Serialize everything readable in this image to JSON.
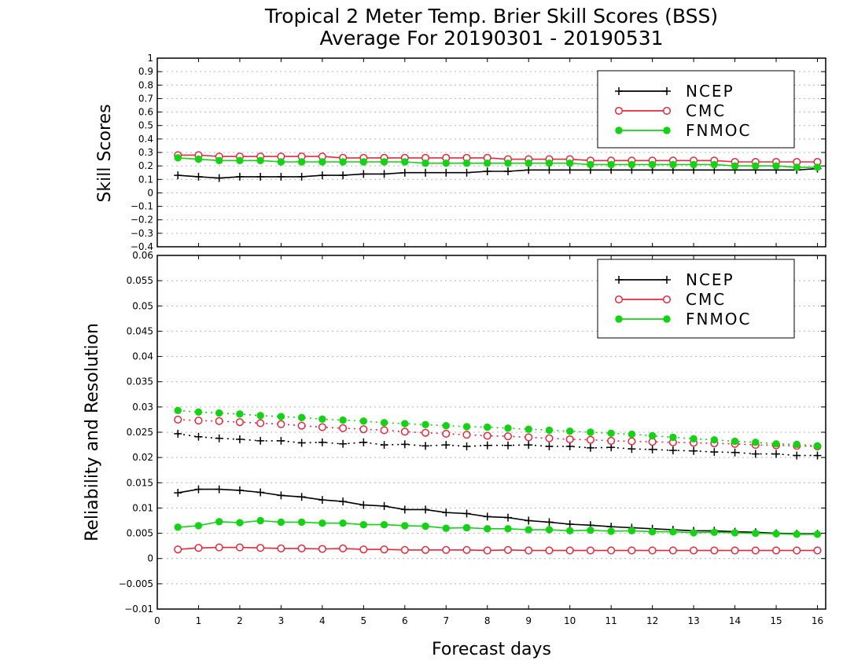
{
  "title_line1": "Tropical 2 Meter Temp. Brier Skill Scores (BSS)",
  "title_line2": "Average For 20190301 - 20190531",
  "xlabel": "Forecast days",
  "colors": {
    "NCEP": "#000000",
    "CMC": "#e8283c",
    "FNMOC": "#14d214"
  },
  "chart_data": [
    {
      "type": "line",
      "ylabel": "Skill Scores",
      "xlim": [
        0,
        16.2
      ],
      "ylim": [
        -0.4,
        1
      ],
      "yticks": [
        "−0.4",
        "−0.3",
        "−0.2",
        "−0.1",
        "0",
        "0.1",
        "0.2",
        "0.3",
        "0.4",
        "0.5",
        "0.6",
        "0.7",
        "0.8",
        "0.9",
        "1"
      ],
      "xticks": [
        "0",
        "1",
        "2",
        "3",
        "4",
        "5",
        "6",
        "7",
        "8",
        "9",
        "10",
        "11",
        "12",
        "13",
        "14",
        "15",
        "16"
      ],
      "grid": true,
      "legend_position": "top-right",
      "legend": [
        "NCEP",
        "CMC",
        "FNMOC"
      ],
      "x": [
        0.5,
        1,
        1.5,
        2,
        2.5,
        3,
        3.5,
        4,
        4.5,
        5,
        5.5,
        6,
        6.5,
        7,
        7.5,
        8,
        8.5,
        9,
        9.5,
        10,
        10.5,
        11,
        11.5,
        12,
        12.5,
        13,
        13.5,
        14,
        14.5,
        15,
        15.5,
        16
      ],
      "series": [
        {
          "name": "NCEP",
          "style": "solid",
          "marker": "plus",
          "values": [
            0.13,
            0.12,
            0.11,
            0.12,
            0.12,
            0.12,
            0.12,
            0.13,
            0.13,
            0.14,
            0.14,
            0.15,
            0.15,
            0.15,
            0.15,
            0.16,
            0.16,
            0.17,
            0.17,
            0.17,
            0.17,
            0.17,
            0.17,
            0.17,
            0.17,
            0.17,
            0.17,
            0.17,
            0.17,
            0.17,
            0.17,
            0.18
          ]
        },
        {
          "name": "CMC",
          "style": "solid",
          "marker": "circle",
          "values": [
            0.28,
            0.28,
            0.27,
            0.27,
            0.27,
            0.27,
            0.27,
            0.27,
            0.26,
            0.26,
            0.26,
            0.26,
            0.26,
            0.26,
            0.26,
            0.26,
            0.25,
            0.25,
            0.25,
            0.25,
            0.24,
            0.24,
            0.24,
            0.24,
            0.24,
            0.24,
            0.24,
            0.23,
            0.23,
            0.23,
            0.23,
            0.23
          ]
        },
        {
          "name": "FNMOC",
          "style": "solid",
          "marker": "dot",
          "values": [
            0.26,
            0.25,
            0.24,
            0.24,
            0.24,
            0.23,
            0.23,
            0.23,
            0.23,
            0.23,
            0.23,
            0.23,
            0.22,
            0.22,
            0.22,
            0.22,
            0.22,
            0.22,
            0.22,
            0.22,
            0.21,
            0.21,
            0.21,
            0.21,
            0.21,
            0.21,
            0.21,
            0.2,
            0.2,
            0.2,
            0.19,
            0.19
          ]
        }
      ]
    },
    {
      "type": "line",
      "ylabel": "Reliability and Resolution",
      "xlim": [
        0,
        16.2
      ],
      "ylim": [
        -0.01,
        0.06
      ],
      "yticks": [
        "−0.01",
        "−0.005",
        "0",
        "0.005",
        "0.01",
        "0.015",
        "0.02",
        "0.025",
        "0.03",
        "0.035",
        "0.04",
        "0.045",
        "0.05",
        "0.055",
        "0.06"
      ],
      "xticks": [
        "0",
        "1",
        "2",
        "3",
        "4",
        "5",
        "6",
        "7",
        "8",
        "9",
        "10",
        "11",
        "12",
        "13",
        "14",
        "15",
        "16"
      ],
      "grid": true,
      "legend_position": "top-right",
      "legend": [
        "NCEP",
        "CMC",
        "FNMOC"
      ],
      "x": [
        0.5,
        1,
        1.5,
        2,
        2.5,
        3,
        3.5,
        4,
        4.5,
        5,
        5.5,
        6,
        6.5,
        7,
        7.5,
        8,
        8.5,
        9,
        9.5,
        10,
        10.5,
        11,
        11.5,
        12,
        12.5,
        13,
        13.5,
        14,
        14.5,
        15,
        15.5,
        16
      ],
      "series": [
        {
          "name": "NCEP",
          "style": "solid",
          "marker": "plus",
          "values": [
            0.013,
            0.0137,
            0.0137,
            0.0135,
            0.0131,
            0.0125,
            0.0122,
            0.0116,
            0.0113,
            0.0106,
            0.0104,
            0.0097,
            0.0097,
            0.0091,
            0.0089,
            0.0083,
            0.0081,
            0.0075,
            0.0072,
            0.0068,
            0.0066,
            0.0063,
            0.0061,
            0.0059,
            0.0057,
            0.0055,
            0.0055,
            0.0053,
            0.0052,
            0.005,
            0.0049,
            0.0049
          ]
        },
        {
          "name": "NCEP",
          "style": "dotted",
          "marker": "plus",
          "values": [
            0.0247,
            0.0241,
            0.0238,
            0.0236,
            0.0233,
            0.0233,
            0.0229,
            0.023,
            0.0227,
            0.023,
            0.0225,
            0.0226,
            0.0223,
            0.0225,
            0.0222,
            0.0224,
            0.0224,
            0.0225,
            0.0222,
            0.0222,
            0.0219,
            0.022,
            0.0217,
            0.0216,
            0.0214,
            0.0213,
            0.0211,
            0.021,
            0.0207,
            0.0207,
            0.0204,
            0.0204
          ]
        },
        {
          "name": "CMC",
          "style": "solid",
          "marker": "circle",
          "values": [
            0.0018,
            0.0021,
            0.0022,
            0.0022,
            0.0021,
            0.002,
            0.002,
            0.0019,
            0.002,
            0.0018,
            0.0018,
            0.0017,
            0.0017,
            0.0017,
            0.0017,
            0.0016,
            0.0017,
            0.0016,
            0.0016,
            0.0016,
            0.0016,
            0.0016,
            0.0016,
            0.0016,
            0.0016,
            0.0016,
            0.0016,
            0.0016,
            0.0016,
            0.0016,
            0.0016,
            0.0016
          ]
        },
        {
          "name": "CMC",
          "style": "dotted",
          "marker": "circle",
          "values": [
            0.0275,
            0.0273,
            0.0272,
            0.027,
            0.0268,
            0.0266,
            0.0263,
            0.026,
            0.0258,
            0.0256,
            0.0254,
            0.0251,
            0.0249,
            0.0247,
            0.0245,
            0.0243,
            0.0242,
            0.024,
            0.0238,
            0.0236,
            0.0235,
            0.0233,
            0.0232,
            0.0231,
            0.023,
            0.0229,
            0.0228,
            0.0227,
            0.0225,
            0.0224,
            0.0223,
            0.0222
          ]
        },
        {
          "name": "FNMOC",
          "style": "solid",
          "marker": "dot",
          "values": [
            0.0062,
            0.0065,
            0.0073,
            0.0071,
            0.0075,
            0.0072,
            0.0072,
            0.007,
            0.007,
            0.0067,
            0.0067,
            0.0065,
            0.0064,
            0.006,
            0.0061,
            0.0059,
            0.0059,
            0.0057,
            0.0057,
            0.0055,
            0.0056,
            0.0054,
            0.0055,
            0.0053,
            0.0053,
            0.0051,
            0.0052,
            0.0051,
            0.005,
            0.0049,
            0.0048,
            0.0048
          ]
        },
        {
          "name": "FNMOC",
          "style": "dotted",
          "marker": "dot",
          "values": [
            0.0293,
            0.029,
            0.0288,
            0.0286,
            0.0283,
            0.0281,
            0.0279,
            0.0276,
            0.0274,
            0.0272,
            0.0269,
            0.0267,
            0.0265,
            0.0263,
            0.0261,
            0.026,
            0.0258,
            0.0256,
            0.0254,
            0.0252,
            0.025,
            0.0248,
            0.0246,
            0.0243,
            0.024,
            0.0237,
            0.0235,
            0.0232,
            0.023,
            0.0227,
            0.0226,
            0.0223
          ]
        }
      ]
    }
  ]
}
